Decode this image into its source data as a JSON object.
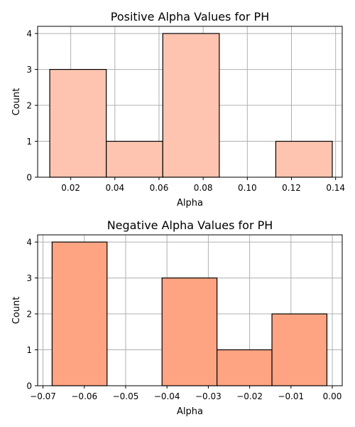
{
  "chart_data": [
    {
      "type": "bar",
      "subtype": "histogram",
      "title": "Positive Alpha Values for PH",
      "xlabel": "Alpha",
      "ylabel": "Count",
      "xlim": [
        0.005,
        0.143
      ],
      "ylim": [
        0,
        4.2
      ],
      "xticks": [
        0.02,
        0.04,
        0.06,
        0.08,
        0.1,
        0.12,
        0.14
      ],
      "xtick_labels": [
        "0.02",
        "0.04",
        "0.06",
        "0.08",
        "0.10",
        "0.12",
        "0.14"
      ],
      "yticks": [
        0,
        1,
        2,
        3,
        4
      ],
      "ytick_labels": [
        "0",
        "1",
        "2",
        "3",
        "4"
      ],
      "grid": true,
      "bar_color": "#ffc4b0",
      "bins": [
        {
          "start": 0.0105,
          "end": 0.0361,
          "count": 3
        },
        {
          "start": 0.0361,
          "end": 0.0617,
          "count": 1
        },
        {
          "start": 0.0617,
          "end": 0.0873,
          "count": 4
        },
        {
          "start": 0.0873,
          "end": 0.1129,
          "count": 0
        },
        {
          "start": 0.1129,
          "end": 0.1385,
          "count": 1
        }
      ]
    },
    {
      "type": "bar",
      "subtype": "histogram",
      "title": "Negative Alpha Values for PH",
      "xlabel": "Alpha",
      "ylabel": "Count",
      "xlim": [
        -0.0713,
        0.0024
      ],
      "ylim": [
        0,
        4.2
      ],
      "xticks": [
        -0.07,
        -0.06,
        -0.05,
        -0.04,
        -0.03,
        -0.02,
        -0.01,
        0.0
      ],
      "xtick_labels": [
        "−0.07",
        "−0.06",
        "−0.05",
        "−0.04",
        "−0.03",
        "−0.02",
        "−0.01",
        "0.00"
      ],
      "yticks": [
        0,
        1,
        2,
        3,
        4
      ],
      "ytick_labels": [
        "0",
        "1",
        "2",
        "3",
        "4"
      ],
      "grid": true,
      "bar_color": "#ffa482",
      "bins": [
        {
          "start": -0.0678,
          "end": -0.0545,
          "count": 4
        },
        {
          "start": -0.0545,
          "end": -0.0412,
          "count": 0
        },
        {
          "start": -0.0412,
          "end": -0.0279,
          "count": 3
        },
        {
          "start": -0.0279,
          "end": -0.0146,
          "count": 1
        },
        {
          "start": -0.0146,
          "end": -0.0013,
          "count": 2
        }
      ]
    }
  ]
}
